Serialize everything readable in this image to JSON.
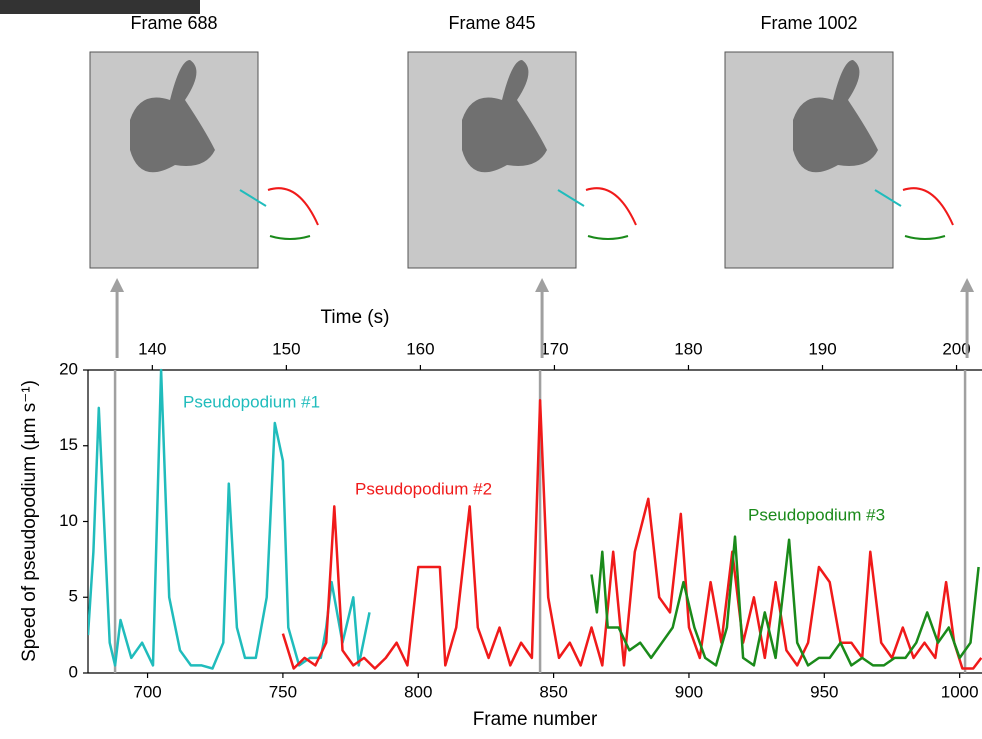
{
  "chart_data": {
    "type": "line",
    "xlabel": "Frame number",
    "x2label": "Time (s)",
    "ylabel": "Speed of pseudopodium (µm s⁻¹)",
    "xlim": [
      678,
      1008
    ],
    "xticks": [
      700,
      750,
      800,
      850,
      900,
      950,
      1000
    ],
    "x2lim": [
      135.2,
      201.9
    ],
    "x2ticks": [
      140,
      150,
      160,
      170,
      180,
      190,
      200
    ],
    "ylim": [
      0,
      20
    ],
    "yticks": [
      0,
      5,
      10,
      15,
      20
    ],
    "panels": [
      {
        "title": "Frame 688",
        "frame": 688
      },
      {
        "title": "Frame 845",
        "frame": 845
      },
      {
        "title": "Frame 1002",
        "frame": 1002
      }
    ],
    "marker_color": "#a0a0a0",
    "series": [
      {
        "name": "Pseudopodium #1",
        "color": "#20bcbc",
        "x": [
          678,
          680,
          682,
          686,
          688,
          690,
          694,
          698,
          702,
          705,
          708,
          712,
          716,
          720,
          724,
          728,
          730,
          733,
          736,
          740,
          744,
          747,
          750,
          752,
          756,
          760,
          764,
          766,
          768,
          772,
          776,
          778,
          782
        ],
        "values": [
          2.5,
          8,
          17.5,
          2,
          0.5,
          3.5,
          1,
          2,
          0.5,
          20,
          5,
          1.5,
          0.5,
          0.5,
          0.3,
          2,
          12.5,
          3,
          1,
          1,
          5,
          16.5,
          14,
          3,
          0.5,
          1,
          1,
          3,
          6,
          2,
          5,
          0.5,
          4
        ]
      },
      {
        "name": "Pseudopodium #2",
        "color": "#f01a1a",
        "x": [
          750,
          754,
          758,
          762,
          766,
          769,
          772,
          776,
          780,
          784,
          788,
          792,
          796,
          800,
          804,
          808,
          810,
          814,
          819,
          822,
          826,
          830,
          834,
          838,
          842,
          845,
          848,
          852,
          856,
          860,
          864,
          868,
          872,
          876,
          880,
          885,
          889,
          893,
          897,
          900,
          904,
          908,
          912,
          916,
          920,
          924,
          928,
          932,
          936,
          940,
          944,
          948,
          952,
          956,
          960,
          964,
          967,
          971,
          975,
          979,
          983,
          987,
          991,
          995,
          998,
          1001,
          1005,
          1008
        ],
        "values": [
          2.6,
          0.3,
          1,
          0.5,
          2,
          11,
          1.5,
          0.5,
          1,
          0.3,
          1,
          2,
          0.5,
          7,
          7,
          7,
          0.5,
          3,
          11,
          3,
          1,
          3,
          0.5,
          2,
          1,
          18,
          5,
          1,
          2,
          0.5,
          3,
          0.5,
          8,
          0.5,
          8,
          11.5,
          5,
          4,
          10.5,
          3,
          1,
          6,
          2,
          8,
          2,
          5,
          1,
          6,
          1.5,
          0.5,
          2,
          7,
          6,
          2,
          2,
          1,
          8,
          2,
          1,
          3,
          1,
          2,
          1,
          6,
          2,
          0.3,
          0.3,
          1
        ]
      },
      {
        "name": "Pseudopodium #3",
        "color": "#1a8a1a",
        "x": [
          864,
          866,
          868,
          870,
          874,
          878,
          882,
          886,
          890,
          894,
          898,
          902,
          906,
          910,
          914,
          917,
          920,
          924,
          928,
          932,
          937,
          940,
          944,
          948,
          952,
          956,
          960,
          964,
          968,
          972,
          976,
          980,
          984,
          988,
          992,
          996,
          1000,
          1004,
          1007
        ],
        "values": [
          6.5,
          4,
          8,
          3,
          3,
          1.5,
          2,
          1,
          2,
          3,
          6,
          3,
          1,
          0.5,
          3,
          9,
          1,
          0.5,
          4,
          1,
          8.8,
          2,
          0.5,
          1,
          1,
          2,
          0.5,
          1,
          0.5,
          0.5,
          1,
          1,
          2,
          4,
          2,
          3,
          1,
          2,
          7
        ]
      }
    ]
  }
}
